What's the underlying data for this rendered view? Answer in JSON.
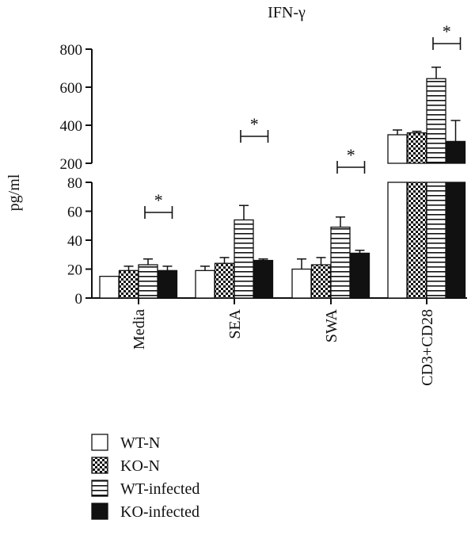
{
  "chart_data": {
    "type": "bar",
    "title": "IFN-γ",
    "ylabel": "pg/ml",
    "xlabel": "",
    "y_axis": "broken",
    "lower_ylim": [
      0,
      80
    ],
    "upper_ylim": [
      200,
      800
    ],
    "lower_ticks": [
      0,
      20,
      40,
      60,
      80
    ],
    "upper_ticks": [
      200,
      400,
      600,
      800
    ],
    "categories": [
      "Media",
      "SEA",
      "SWA",
      "CD3+CD28"
    ],
    "series": [
      {
        "name": "WT-N",
        "values": [
          15,
          19,
          20,
          350
        ],
        "errors": [
          0,
          3,
          7,
          25
        ],
        "color": "#ffffff",
        "pattern": "none"
      },
      {
        "name": "KO-N",
        "values": [
          19,
          24,
          23,
          360
        ],
        "errors": [
          3,
          4,
          5,
          8
        ],
        "color": "#111111",
        "pattern": "checker"
      },
      {
        "name": "WT-infected",
        "values": [
          23,
          54,
          49,
          645
        ],
        "errors": [
          4,
          10,
          7,
          60
        ],
        "color": "#ffffff",
        "pattern": "horizontal-stripes"
      },
      {
        "name": "KO-infected",
        "values": [
          19,
          26,
          31,
          315
        ],
        "errors": [
          3,
          1,
          2,
          110
        ],
        "color": "#111111",
        "pattern": "solid"
      }
    ],
    "significance": [
      {
        "category": "Media",
        "label": "*"
      },
      {
        "category": "SEA",
        "label": "*"
      },
      {
        "category": "SWA",
        "label": "*"
      },
      {
        "category": "CD3+CD28",
        "label": "*"
      }
    ],
    "legend_position": "bottom-left",
    "grid": false
  }
}
